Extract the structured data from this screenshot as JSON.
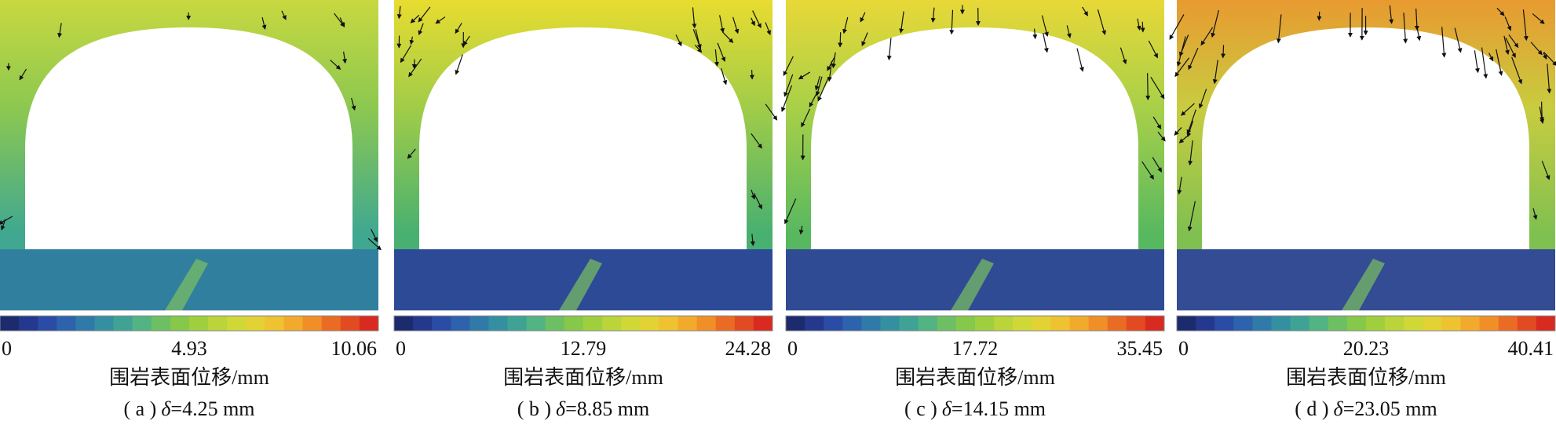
{
  "panels": [
    {
      "colorbar_ticks": [
        "0",
        "4.93",
        "10.06"
      ],
      "colorbar_label": "围岩表面位移/mm",
      "caption_label": "( a )",
      "caption_symbol": "δ",
      "caption_value": "=4.25 mm"
    },
    {
      "colorbar_ticks": [
        "0",
        "12.79",
        "24.28"
      ],
      "colorbar_label": "围岩表面位移/mm",
      "caption_label": "( b )",
      "caption_symbol": "δ",
      "caption_value": "=8.85 mm"
    },
    {
      "colorbar_ticks": [
        "0",
        "17.72",
        "35.45"
      ],
      "colorbar_label": "围岩表面位移/mm",
      "caption_label": "( c )",
      "caption_symbol": "δ",
      "caption_value": "=14.15 mm"
    },
    {
      "colorbar_ticks": [
        "0",
        "20.23",
        "40.41"
      ],
      "colorbar_label": "围岩表面位移/mm",
      "caption_label": "( d )",
      "caption_symbol": "δ",
      "caption_value": "=23.05 mm"
    }
  ]
}
